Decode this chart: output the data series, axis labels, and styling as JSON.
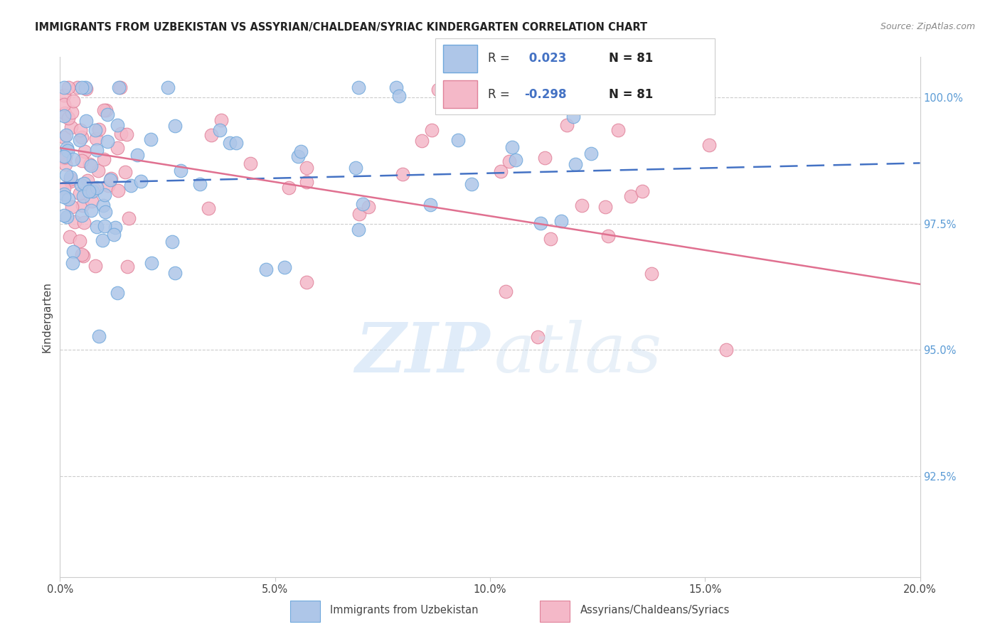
{
  "title": "IMMIGRANTS FROM UZBEKISTAN VS ASSYRIAN/CHALDEAN/SYRIAC KINDERGARTEN CORRELATION CHART",
  "source": "Source: ZipAtlas.com",
  "ylabel": "Kindergarten",
  "legend_blue_r": "0.023",
  "legend_blue_n": "81",
  "legend_pink_r": "-0.298",
  "legend_pink_n": "81",
  "blue_scatter_color": "#aec6e8",
  "blue_edge_color": "#6fa8dc",
  "pink_scatter_color": "#f4b8c8",
  "pink_edge_color": "#e0829a",
  "blue_line_color": "#4472c4",
  "pink_line_color": "#e07090",
  "grid_color": "#cccccc",
  "axis_color": "#cccccc",
  "right_tick_color": "#5b9bd5",
  "title_color": "#222222",
  "source_color": "#888888",
  "watermark_zip_color": "#cce0f5",
  "watermark_atlas_color": "#ccdff0",
  "xlim": [
    0.0,
    0.2
  ],
  "ylim": [
    0.905,
    1.008
  ],
  "yticks": [
    0.925,
    0.95,
    0.975,
    1.0
  ],
  "ytick_labels": [
    "92.5%",
    "95.0%",
    "97.5%",
    "100.0%"
  ],
  "xticks": [
    0.0,
    0.05,
    0.1,
    0.15,
    0.2
  ],
  "xtick_labels": [
    "0.0%",
    "5.0%",
    "10.0%",
    "15.0%",
    "20.0%"
  ]
}
